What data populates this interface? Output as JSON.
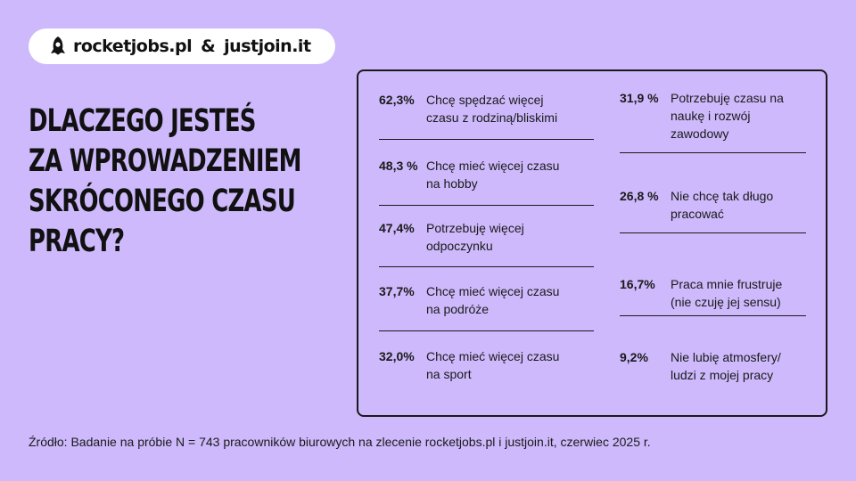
{
  "brand": {
    "logo_icon": "rocket-icon",
    "name1": "rocketjobs.pl",
    "amp": "&",
    "name2": "justjoin.it"
  },
  "headline": [
    "DLACZEGO JESTEŚ",
    "ZA WPROWADZENIEM",
    "SKRÓCONEGO CZASU",
    "PRACY?"
  ],
  "chart_data": {
    "type": "table",
    "title": "DLACZEGO JESTEŚ ZA WPROWADZENIEM SKRÓCONEGO CZASU PRACY?",
    "columns": [
      [
        {
          "value": "62,3%",
          "label": [
            "Chcę spędzać więcej",
            "czasu z rodziną/bliskimi"
          ]
        },
        {
          "value": "48,3 %",
          "label": [
            "Chcę mieć więcej czasu",
            "na hobby"
          ]
        },
        {
          "value": "47,4%",
          "label": [
            "Potrzebuję więcej",
            "odpoczynku"
          ]
        },
        {
          "value": "37,7%",
          "label": [
            "Chcę mieć więcej czasu",
            "na podróże"
          ]
        },
        {
          "value": "32,0%",
          "label": [
            "Chcę mieć więcej czasu",
            "na sport"
          ]
        }
      ],
      [
        {
          "value": "31,9 %",
          "label": [
            "Potrzebuję czasu na",
            "naukę i rozwój",
            "zawodowy"
          ]
        },
        {
          "value": "26,8 %",
          "label": [
            "Nie chcę tak długo",
            "pracować"
          ]
        },
        {
          "value": "16,7%",
          "label": [
            "Praca mnie frustruje",
            "(nie czuję jej sensu)"
          ]
        },
        {
          "value": "9,2%",
          "label": [
            "Nie lubię atmosfery/",
            "ludzi z mojej pracy"
          ]
        }
      ]
    ]
  },
  "source": "Źródło: Badanie na próbie N = 743 pracowników biurowych na zlecenie rocketjobs.pl i justjoin.it, czerwiec 2025 r."
}
